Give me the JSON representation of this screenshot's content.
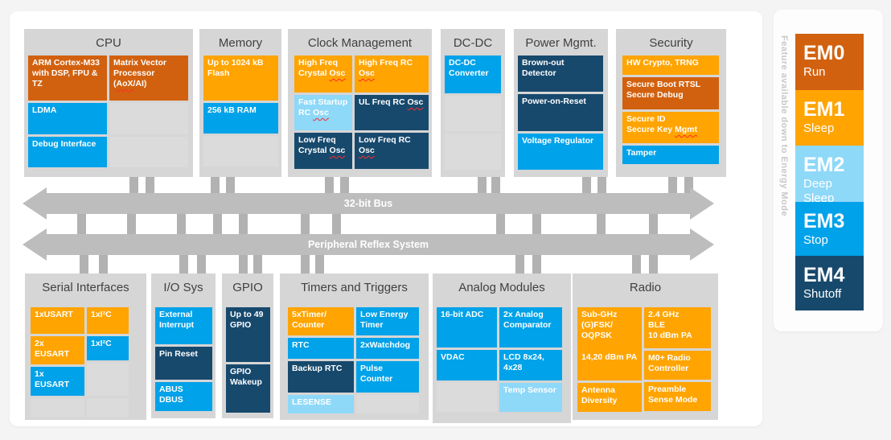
{
  "palette": {
    "orange": "#ffa400",
    "dark_orange": "#d2610f",
    "blue": "#00a2e9",
    "light_blue": "#8ed8f8",
    "navy": "#17496d"
  },
  "buses": {
    "bus1_label": "32-bit Bus",
    "bus2_label": "Peripheral Reflex System"
  },
  "sections": [
    {
      "id": "cpu",
      "title": "CPU",
      "columns": [
        {
          "blocks": [
            {
              "label": "ARM Cortex-M33 with DSP, FPU & TZ",
              "tone": "dark_orange",
              "h": 56
            },
            {
              "label": "LDMA",
              "tone": "blue",
              "h": 39
            },
            {
              "label": "Debug Interface",
              "tone": "blue",
              "h": 38
            }
          ]
        },
        {
          "blocks": [
            {
              "label": "Matrix Vector Processor (AoX/AI)",
              "tone": "dark_orange",
              "h": 56,
              "squiggle": "AoX"
            },
            {
              "label": "",
              "tone": "filler",
              "h": 39
            },
            {
              "label": "",
              "tone": "filler",
              "h": 38
            }
          ]
        }
      ]
    },
    {
      "id": "memory",
      "title": "Memory",
      "columns": [
        {
          "blocks": [
            {
              "label": "Up to 1024 kB Flash",
              "tone": "orange",
              "h": 56
            },
            {
              "label": "256 kB RAM",
              "tone": "blue",
              "h": 38
            },
            {
              "label": "",
              "tone": "filler",
              "h": 38
            }
          ]
        }
      ]
    },
    {
      "id": "clock",
      "title": "Clock Management",
      "columns": [
        {
          "blocks": [
            {
              "label": "High Freq Crystal Osc",
              "tone": "orange",
              "h": 46,
              "squiggle": "Osc"
            },
            {
              "label": "Fast Startup RC Osc",
              "tone": "light_blue",
              "h": 44,
              "squiggle": "Osc"
            },
            {
              "label": "Low Freq Crystal Osc",
              "tone": "navy",
              "h": 45,
              "squiggle": "Osc"
            }
          ]
        },
        {
          "blocks": [
            {
              "label": "High Freq RC Osc",
              "tone": "orange",
              "h": 46,
              "squiggle": "Osc"
            },
            {
              "label": "UL Freq RC Osc",
              "tone": "navy",
              "h": 44,
              "squiggle": "Osc"
            },
            {
              "label": "Low Freq RC Osc",
              "tone": "navy",
              "h": 45,
              "squiggle": "Osc"
            }
          ]
        }
      ]
    },
    {
      "id": "dcdc",
      "title": "DC-DC",
      "columns": [
        {
          "blocks": [
            {
              "label": "DC-DC Converter",
              "tone": "blue",
              "h": 47
            },
            {
              "label": "",
              "tone": "filler",
              "h": 44
            },
            {
              "label": "",
              "tone": "filler",
              "h": 45
            }
          ]
        }
      ]
    },
    {
      "id": "power",
      "title": "Power Mgmt.",
      "columns": [
        {
          "blocks": [
            {
              "label": "Brown-out Detector",
              "tone": "navy",
              "h": 45
            },
            {
              "label": "Power-on-Reset",
              "tone": "navy",
              "h": 46
            },
            {
              "label": "Voltage Regulator",
              "tone": "blue",
              "h": 45
            }
          ]
        }
      ]
    },
    {
      "id": "security",
      "title": "Security",
      "columns": [
        {
          "blocks": [
            {
              "label": "HW Crypto, TRNG",
              "tone": "orange",
              "h": 24
            },
            {
              "label": "Secure Boot RTSL\nSecure Debug",
              "tone": "dark_orange",
              "h": 40
            },
            {
              "label": "Secure ID\nSecure Key Mgmt",
              "tone": "orange",
              "h": 39,
              "squiggle": "Mgmt"
            },
            {
              "label": "Tamper",
              "tone": "blue",
              "h": 23
            }
          ]
        }
      ]
    },
    {
      "id": "serial",
      "title": "Serial Interfaces",
      "columns": [
        {
          "blocks": [
            {
              "label": "1xUSART",
              "tone": "orange",
              "h": 33
            },
            {
              "label": "2x EUSART",
              "tone": "orange",
              "h": 35
            },
            {
              "label": "1x EUSART",
              "tone": "blue",
              "h": 36
            },
            {
              "label": "",
              "tone": "filler",
              "h": 24
            }
          ]
        },
        {
          "blocks": [
            {
              "label": "1xI²C",
              "tone": "orange",
              "h": 33
            },
            {
              "label": "1xI²C",
              "tone": "blue",
              "h": 30
            },
            {
              "label": "",
              "tone": "filler",
              "h": 41
            },
            {
              "label": "",
              "tone": "filler",
              "h": 24
            }
          ]
        }
      ]
    },
    {
      "id": "io",
      "title": "I/O Sys",
      "columns": [
        {
          "blocks": [
            {
              "label": "External Interrupt",
              "tone": "blue",
              "h": 46
            },
            {
              "label": "Pin Reset",
              "tone": "navy",
              "h": 41
            },
            {
              "label": "ABUS\nDBUS",
              "tone": "blue",
              "h": 36
            }
          ]
        }
      ]
    },
    {
      "id": "gpio",
      "title": "GPIO",
      "columns": [
        {
          "blocks": [
            {
              "label": "Up to 49 GPIO",
              "tone": "navy",
              "h": 68
            },
            {
              "label": "GPIO Wakeup",
              "tone": "navy",
              "h": 60
            }
          ]
        }
      ]
    },
    {
      "id": "timers",
      "title": "Timers and Triggers",
      "columns": [
        {
          "blocks": [
            {
              "label": "5xTimer/\nCounter",
              "tone": "orange",
              "h": 35
            },
            {
              "label": "RTC",
              "tone": "blue",
              "h": 26
            },
            {
              "label": "Backup RTC",
              "tone": "navy",
              "h": 39
            },
            {
              "label": "LESENSE",
              "tone": "light_blue",
              "h": 23
            }
          ]
        },
        {
          "blocks": [
            {
              "label": "Low Energy Timer",
              "tone": "blue",
              "h": 35
            },
            {
              "label": "2xWatchdog",
              "tone": "blue",
              "h": 26
            },
            {
              "label": "Pulse Counter",
              "tone": "blue",
              "h": 39
            },
            {
              "label": "",
              "tone": "filler",
              "h": 23
            }
          ]
        }
      ]
    },
    {
      "id": "analog",
      "title": "Analog Modules",
      "columns": [
        {
          "blocks": [
            {
              "label": "16-bit ADC",
              "tone": "blue",
              "h": 50
            },
            {
              "label": "VDAC",
              "tone": "blue",
              "h": 38
            },
            {
              "label": "",
              "tone": "filler",
              "h": 36
            }
          ]
        },
        {
          "blocks": [
            {
              "label": "2x Analog Comparator",
              "tone": "blue",
              "h": 50
            },
            {
              "label": "LCD 8x24, 4x28",
              "tone": "blue",
              "h": 38
            },
            {
              "label": "Temp Sensor",
              "tone": "light_blue",
              "h": 36
            }
          ]
        }
      ]
    },
    {
      "id": "radio",
      "title": "Radio",
      "columns": [
        {
          "blocks": [
            {
              "label": "Sub-GHz (G)FSK/\nOQPSK\n\n14,20 dBm PA",
              "tone": "orange",
              "h": 91
            },
            {
              "label": "Antenna Diversity",
              "tone": "orange",
              "h": 36
            }
          ]
        },
        {
          "blocks": [
            {
              "label": "2.4 GHz\nBLE\n10 dBm PA",
              "tone": "orange",
              "h": 51
            },
            {
              "label": "M0+ Radio Controller",
              "tone": "orange",
              "h": 36
            },
            {
              "label": "Preamble Sense Mode",
              "tone": "orange",
              "h": 36
            }
          ]
        }
      ]
    }
  ],
  "em_panel": {
    "caption": "Feature available down to Energy Mode",
    "modes": [
      {
        "name": "EM0",
        "sub": "Run",
        "tone": "dark_orange"
      },
      {
        "name": "EM1",
        "sub": "Sleep",
        "tone": "orange"
      },
      {
        "name": "EM2",
        "sub": "Deep\nSleep",
        "tone": "light_blue"
      },
      {
        "name": "EM3",
        "sub": "Stop",
        "tone": "blue"
      },
      {
        "name": "EM4",
        "sub": "Shutoff",
        "tone": "navy"
      }
    ]
  }
}
